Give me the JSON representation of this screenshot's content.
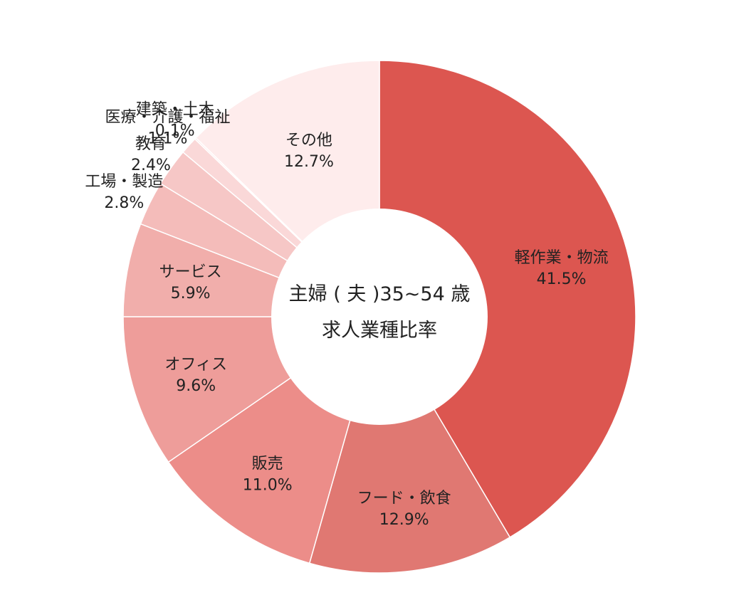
{
  "chart_data": {
    "type": "pie",
    "title": "主婦（夫）35~54歳 求人業種比率",
    "center_title_line1": "主婦 ( 夫 )35~54 歳",
    "center_title_line2": "求人業種比率",
    "start_angle_deg": 0,
    "direction": "clockwise",
    "slices": [
      {
        "name": "軽作業・物流",
        "value": 41.5,
        "value_label": "41.5%",
        "color": "#dc5650"
      },
      {
        "name": "フード・飲食",
        "value": 12.9,
        "value_label": "12.9%",
        "color": "#e07872"
      },
      {
        "name": "販売",
        "value": 11.0,
        "value_label": "11.0%",
        "color": "#ec8d89"
      },
      {
        "name": "オフィス",
        "value": 9.6,
        "value_label": "9.6%",
        "color": "#ee9d9a"
      },
      {
        "name": "サービス",
        "value": 5.9,
        "value_label": "5.9%",
        "color": "#f1aeab"
      },
      {
        "name": "工場・製造",
        "value": 2.8,
        "value_label": "2.8%",
        "color": "#f4bcba"
      },
      {
        "name": "教育",
        "value": 2.4,
        "value_label": "2.4%",
        "color": "#f6c7c6"
      },
      {
        "name": "医療・介護・福祉",
        "value": 1.1,
        "value_label": "1.1%",
        "color": "#fad8d8"
      },
      {
        "name": "建築・土木",
        "value": 0.1,
        "value_label": "0.1%",
        "color": "#fce4e4"
      },
      {
        "name": "その他",
        "value": 12.7,
        "value_label": "12.7%",
        "color": "#feecec"
      }
    ]
  }
}
